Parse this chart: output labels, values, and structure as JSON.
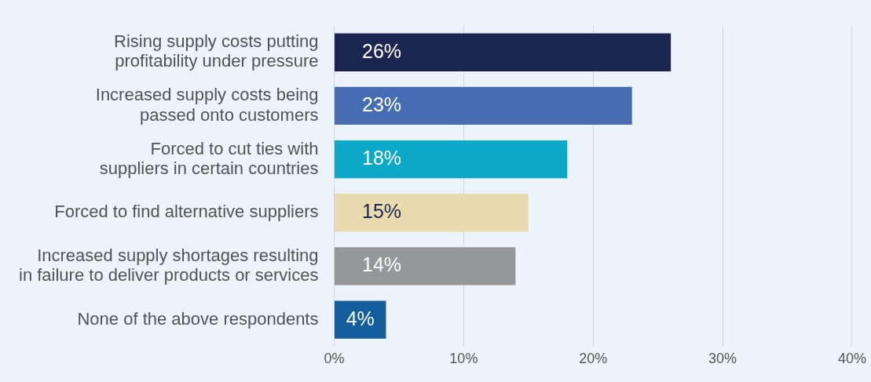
{
  "chart_data": {
    "type": "bar",
    "orientation": "horizontal",
    "categories": [
      "Rising supply costs putting\nprofitability under pressure",
      "Increased supply costs being\npassed onto customers",
      "Forced to cut ties with\nsuppliers in certain countries",
      "Forced to find alternative suppliers",
      "Increased supply shortages resulting\nin failure to deliver products or services",
      "None of the above respondents"
    ],
    "values": [
      26,
      23,
      18,
      15,
      14,
      4
    ],
    "colors": [
      "#1b2550",
      "#476db4",
      "#0ba8c8",
      "#e9dbb0",
      "#96979a",
      "#155e9e"
    ],
    "data_labels": true,
    "value_labels": [
      "26%",
      "23%",
      "18%",
      "15%",
      "14%",
      "4%"
    ],
    "xlim": [
      0,
      40
    ],
    "xticks": [
      {
        "value": 0,
        "label": "0%"
      },
      {
        "value": 10,
        "label": "10%"
      },
      {
        "value": 20,
        "label": "20%"
      },
      {
        "value": 30,
        "label": "30%"
      },
      {
        "value": 40,
        "label": "40%"
      }
    ],
    "grid": "x",
    "legend": false
  }
}
